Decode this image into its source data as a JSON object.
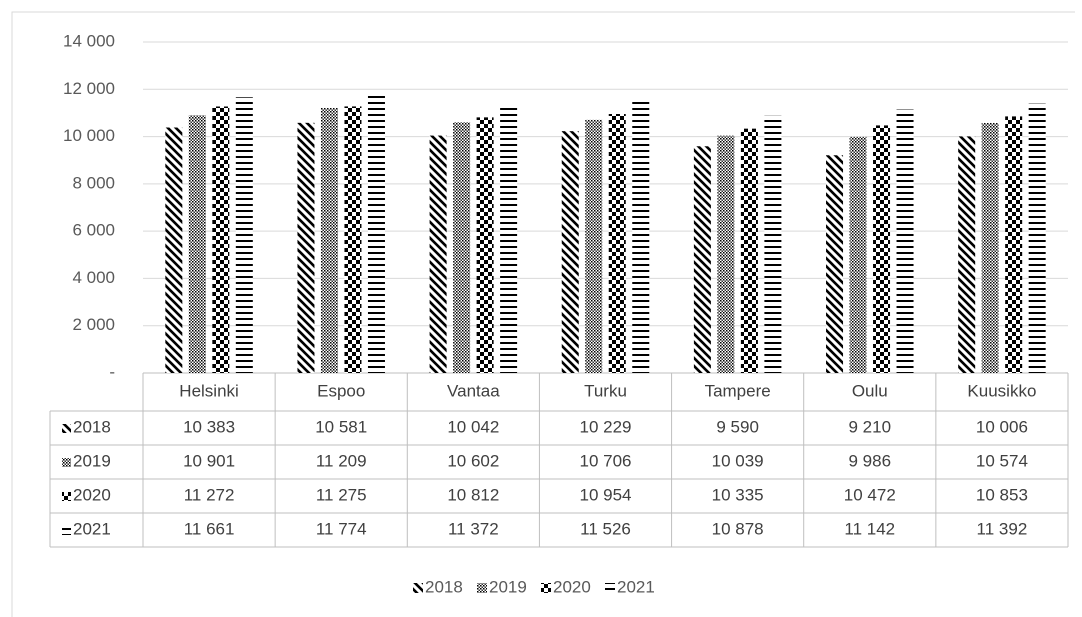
{
  "chart_data": {
    "type": "bar",
    "categories": [
      "Helsinki",
      "Espoo",
      "Vantaa",
      "Turku",
      "Tampere",
      "Oulu",
      "Kuusikko"
    ],
    "series": [
      {
        "name": "2018",
        "color": "#000000",
        "pattern": "wide-downward-diagonal",
        "values": [
          10383,
          10581,
          10042,
          10229,
          9590,
          9210,
          10006
        ],
        "value_labels": [
          "10 383",
          "10 581",
          "10 042",
          "10 229",
          "9 590",
          "9 210",
          "10 006"
        ]
      },
      {
        "name": "2019",
        "color": "#000000",
        "pattern": "small-checker",
        "values": [
          10901,
          11209,
          10602,
          10706,
          10039,
          9986,
          10574
        ],
        "value_labels": [
          "10 901",
          "11 209",
          "10 602",
          "10 706",
          "10 039",
          "9 986",
          "10 574"
        ]
      },
      {
        "name": "2020",
        "color": "#000000",
        "pattern": "large-checker",
        "values": [
          11272,
          11275,
          10812,
          10954,
          10335,
          10472,
          10853
        ],
        "value_labels": [
          "11 272",
          "11 275",
          "10 812",
          "10 954",
          "10 335",
          "10 472",
          "10 853"
        ]
      },
      {
        "name": "2021",
        "color": "#000000",
        "pattern": "horizontal",
        "values": [
          11661,
          11774,
          11372,
          11526,
          10878,
          11142,
          11392
        ],
        "value_labels": [
          "11 661",
          "11 774",
          "11 372",
          "11 526",
          "10 878",
          "11 142",
          "11 392"
        ]
      }
    ],
    "ylim": [
      0,
      14000
    ],
    "yticks": [
      {
        "value": 0,
        "label": "-"
      },
      {
        "value": 2000,
        "label": "2 000"
      },
      {
        "value": 4000,
        "label": "4 000"
      },
      {
        "value": 6000,
        "label": "6 000"
      },
      {
        "value": 8000,
        "label": "8 000"
      },
      {
        "value": 10000,
        "label": "10 000"
      },
      {
        "value": 12000,
        "label": "12 000"
      },
      {
        "value": 14000,
        "label": "14 000"
      }
    ],
    "grid": true,
    "legend": "bottom"
  }
}
